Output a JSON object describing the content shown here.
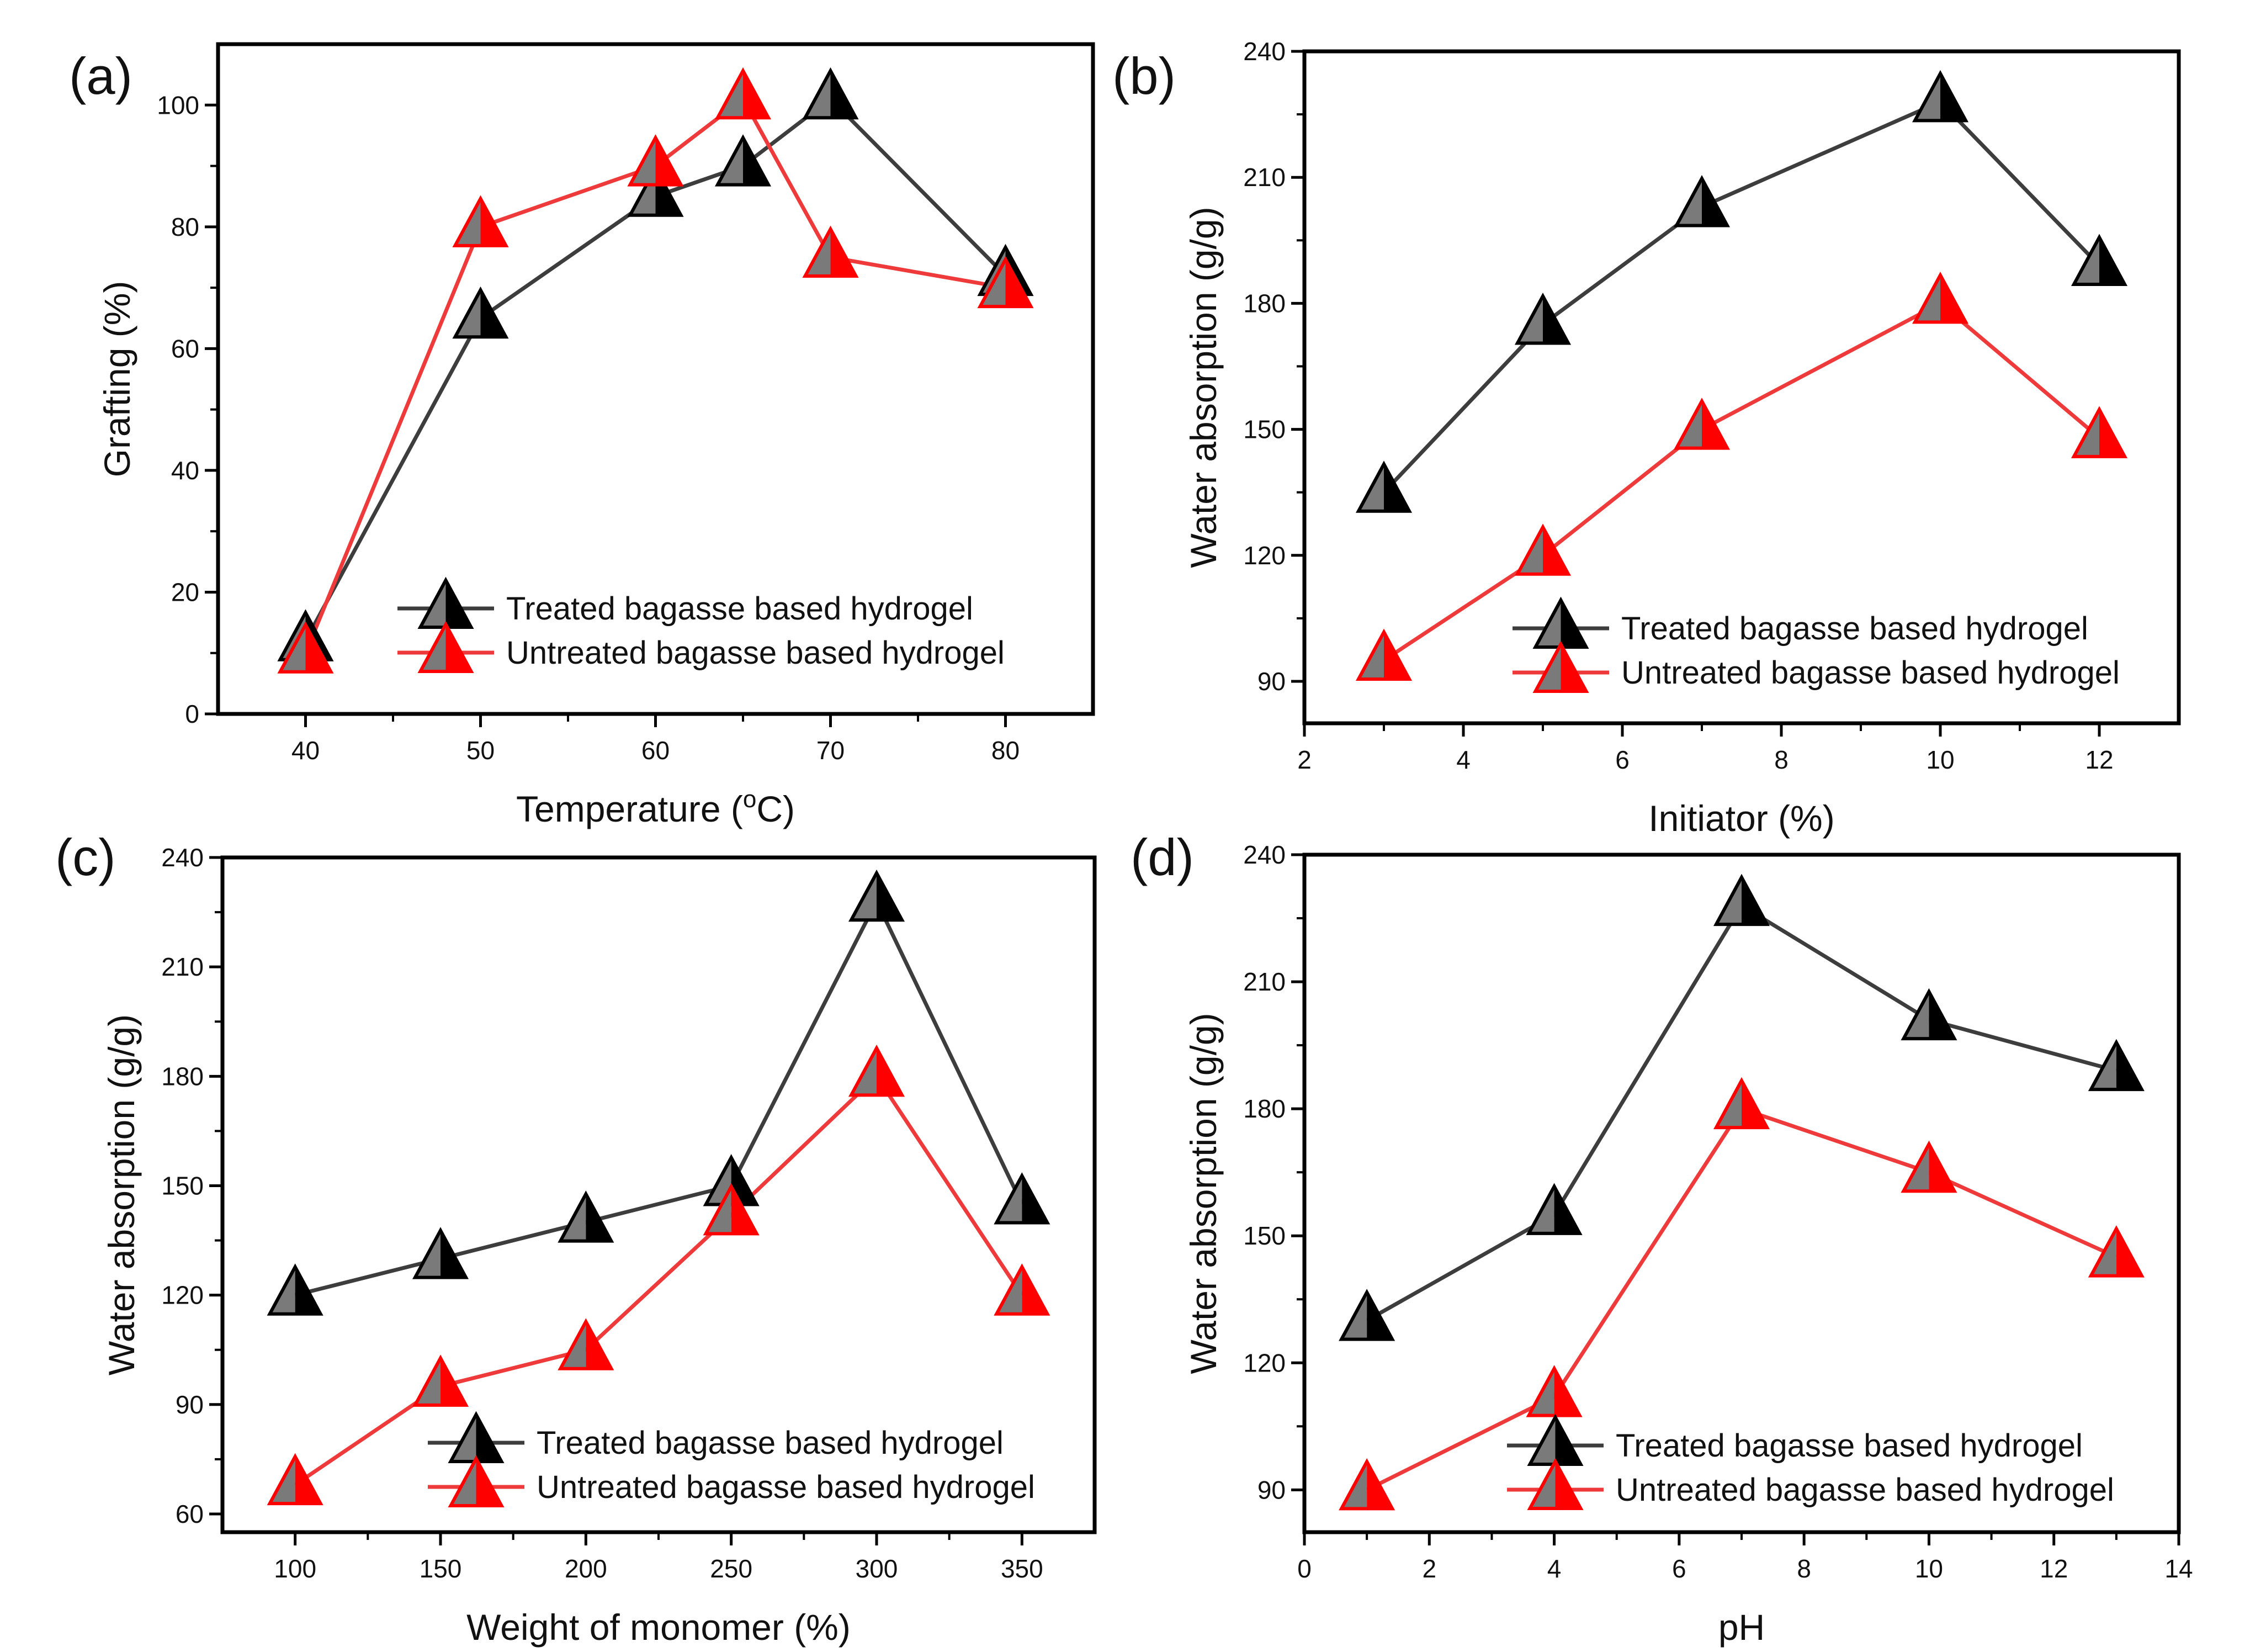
{
  "colors": {
    "treated_line": "#3d3d3d",
    "untreated_line": "#ee3a3a",
    "treated_marker_dark": "#000000",
    "treated_marker_light": "#7a7a7a",
    "untreated_marker_dark": "#ff0000",
    "untreated_marker_light": "#7a7a7a"
  },
  "chart_data": [
    {
      "id": "a",
      "panel_label": "(a)",
      "type": "line",
      "xlabel": "Temperature (°C)",
      "xlabel_main": "Temperature (",
      "xlabel_sup": "o",
      "xlabel_tail": "C)",
      "ylabel": "Grafting (%)",
      "xlim": [
        35,
        85
      ],
      "ylim": [
        0,
        110
      ],
      "xticks": [
        40,
        50,
        60,
        70,
        80
      ],
      "yticks": [
        0,
        20,
        40,
        60,
        80,
        100
      ],
      "legend_position": "bottom-right",
      "series": [
        {
          "name": "Treated bagasse based hydrogel",
          "style": "treated",
          "x": [
            40,
            50,
            60,
            65,
            70,
            80
          ],
          "y": [
            12,
            65,
            85,
            90,
            101,
            72
          ]
        },
        {
          "name": "Untreated bagasse based hydrogel",
          "style": "untreated",
          "x": [
            40,
            50,
            60,
            65,
            70,
            80
          ],
          "y": [
            10,
            80,
            90,
            101,
            75,
            70
          ]
        }
      ]
    },
    {
      "id": "b",
      "panel_label": "(b)",
      "type": "line",
      "xlabel": "Initiator (%)",
      "ylabel": "Water absorption (g/g)",
      "xlim": [
        2,
        13
      ],
      "ylim": [
        80,
        240
      ],
      "xticks": [
        2,
        4,
        6,
        8,
        10,
        12
      ],
      "yticks": [
        90,
        120,
        150,
        180,
        210,
        240
      ],
      "legend_position": "bottom-right",
      "series": [
        {
          "name": "Treated bagasse based hydrogel",
          "style": "treated",
          "x": [
            3,
            5,
            7,
            10,
            12
          ],
          "y": [
            135,
            175,
            203,
            228,
            189
          ]
        },
        {
          "name": "Untreated bagasse based hydrogel",
          "style": "untreated",
          "x": [
            3,
            5,
            7,
            10,
            12
          ],
          "y": [
            95,
            120,
            150,
            180,
            148
          ]
        }
      ]
    },
    {
      "id": "c",
      "panel_label": "(c)",
      "type": "line",
      "xlabel": "Weight of monomer (%)",
      "ylabel": "Water absorption (g/g)",
      "xlim": [
        75,
        375
      ],
      "ylim": [
        55,
        240
      ],
      "xticks": [
        100,
        150,
        200,
        250,
        300,
        350
      ],
      "yticks": [
        60,
        90,
        120,
        150,
        180,
        210,
        240
      ],
      "legend_position": "bottom-right",
      "series": [
        {
          "name": "Treated bagasse based hydrogel",
          "style": "treated",
          "x": [
            100,
            150,
            200,
            250,
            300,
            350
          ],
          "y": [
            120,
            130,
            140,
            150,
            228,
            145
          ]
        },
        {
          "name": "Untreated bagasse based hydrogel",
          "style": "untreated",
          "x": [
            100,
            150,
            200,
            250,
            300,
            350
          ],
          "y": [
            68,
            95,
            105,
            142,
            180,
            120
          ]
        }
      ]
    },
    {
      "id": "d",
      "panel_label": "(d)",
      "type": "line",
      "xlabel": "pH",
      "ylabel": "Water absorption (g/g)",
      "xlim": [
        0,
        14
      ],
      "ylim": [
        80,
        240
      ],
      "xticks": [
        0,
        2,
        4,
        6,
        8,
        10,
        12,
        14
      ],
      "yticks": [
        90,
        120,
        150,
        180,
        210,
        240
      ],
      "legend_position": "bottom-right",
      "series": [
        {
          "name": "Treated bagasse based hydrogel",
          "style": "treated",
          "x": [
            1,
            4,
            7,
            10,
            13
          ],
          "y": [
            130,
            155,
            228,
            201,
            189
          ]
        },
        {
          "name": "Untreated bagasse based hydrogel",
          "style": "untreated",
          "x": [
            1,
            4,
            7,
            10,
            13
          ],
          "y": [
            90,
            112,
            180,
            165,
            145
          ]
        }
      ]
    }
  ]
}
